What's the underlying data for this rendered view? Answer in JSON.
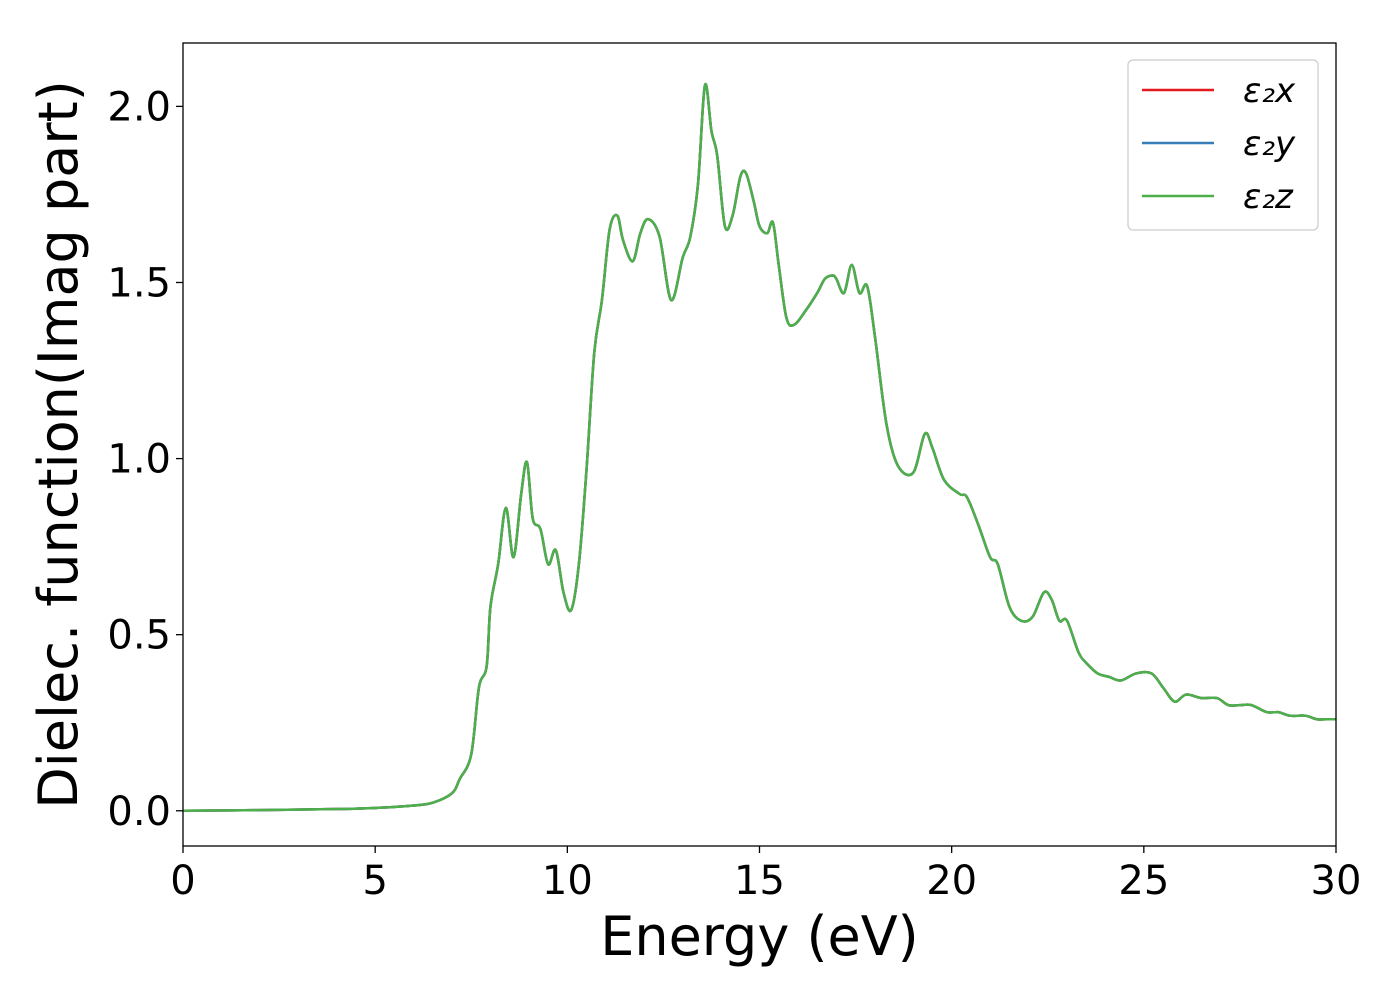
{
  "chart_data": {
    "type": "line",
    "xlabel": "Energy (eV)",
    "ylabel": "Dielec. function(Imag part)",
    "xlim": [
      0,
      30
    ],
    "ylim": [
      -0.1,
      2.18
    ],
    "xticks": [
      0,
      5,
      10,
      15,
      20,
      25,
      30
    ],
    "xtick_labels": [
      "0",
      "5",
      "10",
      "15",
      "20",
      "25",
      "30"
    ],
    "yticks": [
      0.0,
      0.5,
      1.0,
      1.5,
      2.0
    ],
    "ytick_labels": [
      "0.0",
      "0.5",
      "1.0",
      "1.5",
      "2.0"
    ],
    "grid": false,
    "legend_position": "top-right",
    "colors": {
      "x": "#e41a1c",
      "y": "#377eb8",
      "z": "#4daf4a",
      "frame": "#000000"
    },
    "x": [
      0,
      2,
      4,
      5,
      6,
      6.5,
      7,
      7.2,
      7.5,
      7.7,
      7.9,
      8.0,
      8.2,
      8.4,
      8.6,
      8.8,
      8.95,
      9.1,
      9.3,
      9.5,
      9.7,
      9.9,
      10.1,
      10.3,
      10.5,
      10.7,
      10.9,
      11.1,
      11.3,
      11.45,
      11.7,
      11.9,
      12.1,
      12.4,
      12.7,
      13.0,
      13.2,
      13.4,
      13.58,
      13.75,
      13.9,
      14.1,
      14.3,
      14.5,
      14.65,
      14.85,
      15.0,
      15.2,
      15.35,
      15.5,
      15.7,
      15.9,
      16.2,
      16.5,
      16.7,
      16.9,
      17.0,
      17.2,
      17.4,
      17.6,
      17.8,
      18.0,
      18.3,
      18.6,
      19.0,
      19.3,
      19.5,
      19.8,
      20.2,
      20.4,
      20.7,
      21.0,
      21.2,
      21.5,
      21.8,
      22.1,
      22.4,
      22.6,
      22.8,
      23.0,
      23.3,
      23.5,
      23.8,
      24.1,
      24.4,
      24.8,
      25.2,
      25.5,
      25.8,
      26.1,
      26.5,
      26.9,
      27.2,
      27.5,
      27.8,
      28.2,
      28.5,
      28.8,
      29.2,
      29.5,
      29.75,
      30.0
    ],
    "series": [
      {
        "name": "ε₂x",
        "values": [
          0.0,
          0.002,
          0.005,
          0.008,
          0.015,
          0.023,
          0.05,
          0.09,
          0.16,
          0.35,
          0.41,
          0.58,
          0.7,
          0.86,
          0.72,
          0.9,
          0.99,
          0.83,
          0.8,
          0.7,
          0.74,
          0.62,
          0.57,
          0.7,
          0.97,
          1.3,
          1.45,
          1.65,
          1.69,
          1.62,
          1.56,
          1.64,
          1.68,
          1.63,
          1.45,
          1.57,
          1.63,
          1.78,
          2.06,
          1.93,
          1.86,
          1.66,
          1.69,
          1.8,
          1.81,
          1.73,
          1.66,
          1.64,
          1.67,
          1.55,
          1.4,
          1.38,
          1.42,
          1.47,
          1.51,
          1.52,
          1.51,
          1.47,
          1.55,
          1.47,
          1.49,
          1.35,
          1.1,
          0.98,
          0.96,
          1.07,
          1.03,
          0.94,
          0.9,
          0.89,
          0.81,
          0.72,
          0.7,
          0.58,
          0.54,
          0.55,
          0.62,
          0.6,
          0.54,
          0.54,
          0.45,
          0.42,
          0.39,
          0.38,
          0.37,
          0.39,
          0.39,
          0.35,
          0.31,
          0.33,
          0.32,
          0.32,
          0.3,
          0.3,
          0.3,
          0.28,
          0.28,
          0.27,
          0.27,
          0.26,
          0.26,
          0.26
        ]
      },
      {
        "name": "ε₂y",
        "values": [
          0.0,
          0.002,
          0.005,
          0.008,
          0.015,
          0.023,
          0.05,
          0.09,
          0.16,
          0.35,
          0.41,
          0.58,
          0.7,
          0.86,
          0.72,
          0.9,
          0.99,
          0.83,
          0.8,
          0.7,
          0.74,
          0.62,
          0.57,
          0.7,
          0.97,
          1.3,
          1.45,
          1.65,
          1.69,
          1.62,
          1.56,
          1.64,
          1.68,
          1.63,
          1.45,
          1.57,
          1.63,
          1.78,
          2.06,
          1.93,
          1.86,
          1.66,
          1.69,
          1.8,
          1.81,
          1.73,
          1.66,
          1.64,
          1.67,
          1.55,
          1.4,
          1.38,
          1.42,
          1.47,
          1.51,
          1.52,
          1.51,
          1.47,
          1.55,
          1.47,
          1.49,
          1.35,
          1.1,
          0.98,
          0.96,
          1.07,
          1.03,
          0.94,
          0.9,
          0.89,
          0.81,
          0.72,
          0.7,
          0.58,
          0.54,
          0.55,
          0.62,
          0.6,
          0.54,
          0.54,
          0.45,
          0.42,
          0.39,
          0.38,
          0.37,
          0.39,
          0.39,
          0.35,
          0.31,
          0.33,
          0.32,
          0.32,
          0.3,
          0.3,
          0.3,
          0.28,
          0.28,
          0.27,
          0.27,
          0.26,
          0.26,
          0.26
        ]
      },
      {
        "name": "ε₂z",
        "values": [
          0.0,
          0.002,
          0.005,
          0.008,
          0.015,
          0.023,
          0.05,
          0.09,
          0.16,
          0.35,
          0.41,
          0.58,
          0.7,
          0.86,
          0.72,
          0.9,
          0.99,
          0.83,
          0.8,
          0.7,
          0.74,
          0.62,
          0.57,
          0.7,
          0.97,
          1.3,
          1.45,
          1.65,
          1.69,
          1.62,
          1.56,
          1.64,
          1.68,
          1.63,
          1.45,
          1.57,
          1.63,
          1.78,
          2.06,
          1.93,
          1.86,
          1.66,
          1.69,
          1.8,
          1.81,
          1.73,
          1.66,
          1.64,
          1.67,
          1.55,
          1.4,
          1.38,
          1.42,
          1.47,
          1.51,
          1.52,
          1.51,
          1.47,
          1.55,
          1.47,
          1.49,
          1.35,
          1.1,
          0.98,
          0.96,
          1.07,
          1.03,
          0.94,
          0.9,
          0.89,
          0.81,
          0.72,
          0.7,
          0.58,
          0.54,
          0.55,
          0.62,
          0.6,
          0.54,
          0.54,
          0.45,
          0.42,
          0.39,
          0.38,
          0.37,
          0.39,
          0.39,
          0.35,
          0.31,
          0.33,
          0.32,
          0.32,
          0.3,
          0.3,
          0.3,
          0.28,
          0.28,
          0.27,
          0.27,
          0.26,
          0.26,
          0.26
        ]
      }
    ]
  }
}
